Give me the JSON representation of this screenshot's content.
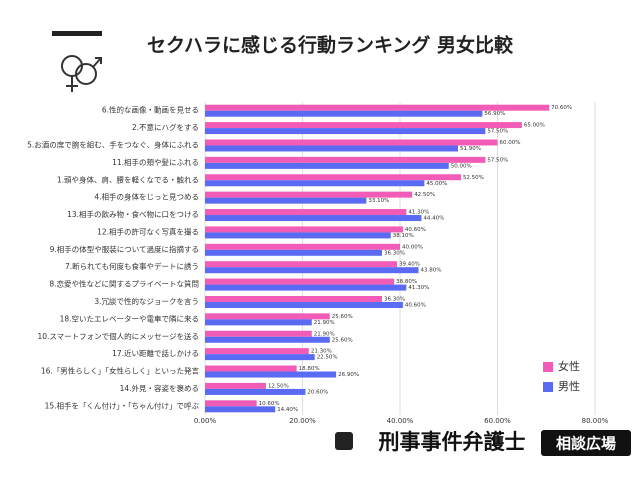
{
  "chart_data": {
    "type": "bar",
    "orientation": "horizontal",
    "title": "セクハラに感じる行動ランキング 男女比較",
    "categories": [
      "6.性的な画像・動画を見せる",
      "2.不意にハグをする",
      "5.お酒の席で腕を組む、手をつなぐ、身体にふれる",
      "11.相手の頬や髪にふれる",
      "1.頭や身体、肩、腰を軽くなでる・触れる",
      "4.相手の身体をじっと見つめる",
      "13.相手の飲み物・食べ物に口をつける",
      "12.相手の許可なく写真を撮る",
      "9.相手の体型や服装について過度に指摘する",
      "7.断られても何度も食事やデートに誘う",
      "8.恋愛や性などに関するプライベートな質問",
      "3.冗談で性的なジョークを言う",
      "18.空いたエレベーターや電車で隣に来る",
      "10.スマートフォンで個人的にメッセージを送る",
      "17.近い距離で話しかける",
      "16.「男性らしく」「女性らしく」といった発言",
      "14.外見・容姿を褒める",
      "15.相手を「くん付け」・「ちゃん付け」で呼ぶ"
    ],
    "series": [
      {
        "name": "女性",
        "color": "#f25cb6",
        "values": [
          70.6,
          65.0,
          60.0,
          57.5,
          52.5,
          42.5,
          41.3,
          40.6,
          40.0,
          39.4,
          38.8,
          36.3,
          25.6,
          21.9,
          21.3,
          18.8,
          12.5,
          10.6
        ],
        "value_labels": [
          "70.60%",
          "65.00%",
          "60.00%",
          "57.50%",
          "52.50%",
          "42.50%",
          "41.30%",
          "40.60%",
          "40.00%",
          "39.40%",
          "38.80%",
          "36.30%",
          "25.60%",
          "21.90%",
          "21.30%",
          "18.80%",
          "12.50%",
          "10.60%"
        ]
      },
      {
        "name": "男性",
        "color": "#5a6af2",
        "values": [
          56.9,
          57.5,
          51.9,
          50.0,
          45.0,
          33.1,
          44.4,
          38.1,
          36.3,
          43.8,
          41.3,
          40.6,
          21.9,
          25.6,
          22.5,
          26.9,
          20.6,
          14.4
        ],
        "value_labels": [
          "56.90%",
          "57.50%",
          "51.90%",
          "50.00%",
          "45.00%",
          "33.10%",
          "44.40%",
          "38.10%",
          "36.30%",
          "43.80%",
          "41.30%",
          "40.60%",
          "21.90%",
          "25.60%",
          "22.50%",
          "26.90%",
          "20.60%",
          "14.40%"
        ]
      }
    ],
    "xlim": [
      0,
      80
    ],
    "xticks": [
      {
        "value": 0,
        "label": "0.00%"
      },
      {
        "value": 20,
        "label": "20.00%"
      },
      {
        "value": 40,
        "label": "40.00%"
      },
      {
        "value": 60,
        "label": "60.00%"
      },
      {
        "value": 80,
        "label": "80.00%"
      }
    ],
    "grid": true,
    "legend": "right"
  },
  "brand": {
    "name": "刑事事件弁護士",
    "tag": "相談広場"
  }
}
